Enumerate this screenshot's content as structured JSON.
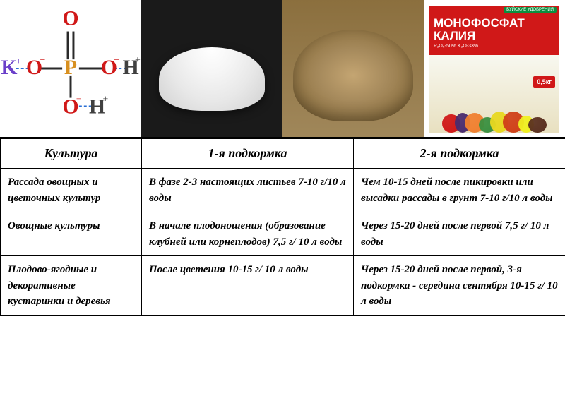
{
  "package": {
    "brand": "БУЙСКИЕ УДОБРЕНИЯ",
    "title_line1": "МОНОФОСФАТ",
    "title_line2": "КАЛИЯ",
    "subtitle": "P₂O₅-50% K₂O-33%",
    "weight": "0,5кг"
  },
  "chemistry": {
    "K": "K⁺",
    "O_top": "O",
    "P": "P",
    "O_left": "O⁻",
    "O_right": "O⁻",
    "H_right": "H⁺",
    "O_bottom": "O⁻",
    "H_bottom": "H⁺",
    "colors": {
      "K": "#6a3fc9",
      "O": "#d01818",
      "P": "#d89020",
      "H": "#404040",
      "bonds": "#2a2a2a",
      "dashed": "#2a6fd4"
    }
  },
  "table": {
    "headers": [
      "Культура",
      "1-я подкормка",
      "2-я подкормка"
    ],
    "rows": [
      {
        "c1": "Рассада овощных и цветочных культур",
        "c2": "В фазе 2-3 настоящих листьев 7-10 г/10 л воды",
        "c3": "Чем 10-15 дней после пикировки или высадки рассады в грунт 7-10 г/10 л воды"
      },
      {
        "c1": "Овощные культуры",
        "c2": "В начале плодоношения (образование клубней или корнеплодов) 7,5 г/ 10 л воды",
        "c3": "Через 15-20 дней после первой 7,5 г/ 10 л воды"
      },
      {
        "c1": "Плодово-ягодные и декоративные кустаринки и деревья",
        "c2": "После цветения 10-15 г/ 10 л воды",
        "c3": "Через 15-20 дней после первой, 3-я подкормка - середина сентября 10-15 г/ 10 л воды"
      }
    ],
    "styling": {
      "font_family": "Georgia, serif",
      "font_style": "italic",
      "font_weight": "bold",
      "cell_fontsize": 15,
      "header_fontsize": 18,
      "border_color": "#000000",
      "background": "#ffffff"
    }
  },
  "vegetables": [
    {
      "color": "#d01818",
      "w": 26,
      "h": 26
    },
    {
      "color": "#4a2c6f",
      "w": 22,
      "h": 28
    },
    {
      "color": "#f08030",
      "w": 28,
      "h": 28
    },
    {
      "color": "#3a9040",
      "w": 24,
      "h": 22
    },
    {
      "color": "#e8d820",
      "w": 26,
      "h": 30
    },
    {
      "color": "#d04018",
      "w": 30,
      "h": 30
    },
    {
      "color": "#f0f020",
      "w": 22,
      "h": 24
    },
    {
      "color": "#5a3020",
      "w": 26,
      "h": 22
    }
  ]
}
